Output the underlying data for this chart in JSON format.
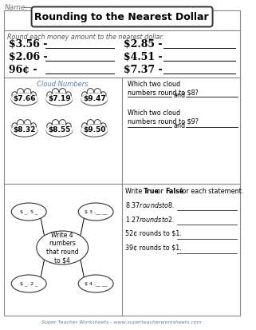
{
  "title": "Rounding to the Nearest Dollar",
  "name_label": "Name:",
  "instruction1": "Round each money amount to the nearest dollar.",
  "amounts_left": [
    "$3.56 -",
    "$2.06 -",
    "96¢ -"
  ],
  "amounts_right": [
    "$2.85 -",
    "$4.51 -",
    "$7.37 -"
  ],
  "cloud_title": "Cloud Numbers",
  "cloud_values": [
    "$7.66",
    "$7.19",
    "$9.47",
    "$8.32",
    "$8.55",
    "$9.50"
  ],
  "q1_text": "Which two cloud\nnumbers round to $8?",
  "q2_text": "Which two cloud\nnumbers round to $9?",
  "and_text": "and",
  "bubble_center_text": "Write 4\nnumbers\nthat round\nto $4",
  "statements": [
    "$8.37 rounds to $8.",
    "$1.27 rounds to $2.",
    "52¢ rounds to $1.",
    "39¢ rounds to $1."
  ],
  "true_false_intro": "Write ",
  "true_text": "True",
  "or_text": " or ",
  "false_text": "False",
  "true_false_end": " for each statement.",
  "footer": "Super Teacher Worksheets - www.superteacherworksheets.com",
  "bg_color": "#ffffff",
  "border_color": "#555555",
  "blue_color": "#5a7fa8",
  "orange_color": "#cc6600",
  "gray_text": "#555555"
}
